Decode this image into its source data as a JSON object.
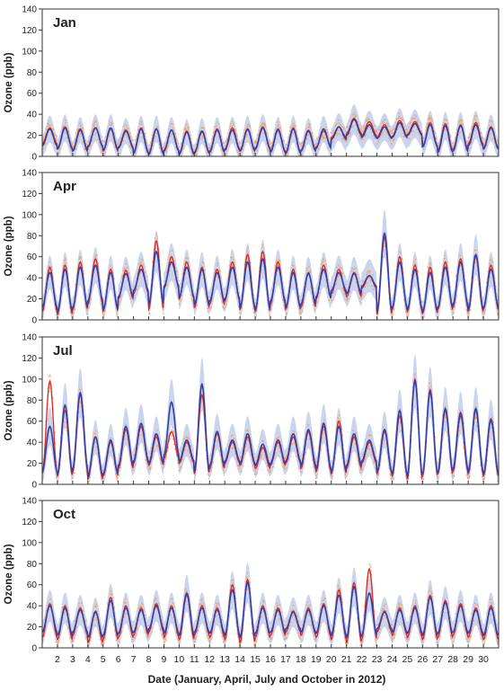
{
  "chart_data": {
    "type": "line",
    "xlabel": "Date (January, April, July and October in 2012)",
    "x_ticks": [
      "2",
      "3",
      "4",
      "5",
      "6",
      "7",
      "8",
      "9",
      "10",
      "11",
      "12",
      "13",
      "14",
      "15",
      "16",
      "17",
      "18",
      "19",
      "20",
      "21",
      "22",
      "23",
      "24",
      "25",
      "26",
      "27",
      "28",
      "29",
      "30"
    ],
    "xlim": [
      1,
      31
    ],
    "ylim": [
      0,
      140
    ],
    "y_ticks": [
      0,
      20,
      40,
      60,
      80,
      100,
      120,
      140
    ],
    "colors": {
      "observed_points": "#f0a45a",
      "red_series": "#e2231a",
      "blue_series": "#3240a8",
      "band": "#b8c6e8"
    },
    "panels": [
      {
        "title": "Jan",
        "ylabel": "Ozone (ppb)",
        "red_daily_peak": [
          27,
          28,
          26,
          27,
          26,
          25,
          27,
          26,
          25,
          24,
          23,
          26,
          27,
          25,
          28,
          26,
          27,
          25,
          24,
          28,
          36,
          33,
          30,
          34,
          33,
          32,
          31,
          30,
          32,
          28
        ],
        "red_daily_low": [
          12,
          8,
          6,
          10,
          5,
          9,
          4,
          3,
          6,
          3,
          4,
          5,
          7,
          6,
          8,
          5,
          4,
          6,
          9,
          18,
          22,
          20,
          18,
          19,
          21,
          10,
          6,
          7,
          12,
          8
        ],
        "blue_daily_peak": [
          26,
          27,
          25,
          27,
          27,
          24,
          26,
          26,
          25,
          23,
          24,
          25,
          25,
          26,
          27,
          25,
          26,
          24,
          26,
          28,
          35,
          30,
          28,
          32,
          31,
          30,
          29,
          29,
          30,
          27
        ],
        "blue_daily_low": [
          10,
          7,
          5,
          9,
          6,
          8,
          3,
          2,
          5,
          2,
          3,
          4,
          6,
          5,
          7,
          4,
          3,
          5,
          8,
          16,
          20,
          18,
          17,
          18,
          20,
          9,
          4,
          5,
          10,
          7
        ]
      },
      {
        "title": "Apr",
        "ylabel": "Ozone (ppb)",
        "red_daily_peak": [
          50,
          52,
          55,
          58,
          48,
          47,
          52,
          75,
          60,
          55,
          50,
          48,
          55,
          62,
          65,
          55,
          48,
          45,
          52,
          48,
          45,
          42,
          78,
          60,
          52,
          50,
          55,
          58,
          60,
          52
        ],
        "red_daily_low": [
          8,
          5,
          10,
          15,
          8,
          20,
          25,
          10,
          30,
          20,
          12,
          15,
          18,
          10,
          8,
          15,
          10,
          12,
          20,
          25,
          22,
          30,
          5,
          10,
          8,
          6,
          10,
          12,
          8,
          10
        ],
        "blue_daily_peak": [
          45,
          48,
          50,
          52,
          45,
          44,
          48,
          65,
          55,
          50,
          48,
          45,
          50,
          55,
          58,
          50,
          45,
          44,
          48,
          45,
          44,
          42,
          82,
          55,
          48,
          45,
          50,
          55,
          62,
          48
        ],
        "blue_daily_low": [
          12,
          8,
          12,
          18,
          10,
          22,
          28,
          15,
          32,
          22,
          15,
          18,
          20,
          12,
          10,
          18,
          12,
          15,
          22,
          28,
          25,
          32,
          8,
          12,
          10,
          8,
          12,
          15,
          10,
          12
        ]
      },
      {
        "title": "Jul",
        "ylabel": "Ozone (ppb)",
        "red_daily_peak": [
          98,
          70,
          85,
          45,
          40,
          52,
          55,
          45,
          50,
          40,
          85,
          48,
          40,
          45,
          35,
          40,
          45,
          50,
          55,
          60,
          45,
          40,
          50,
          65,
          100,
          90,
          70,
          65,
          70,
          60
        ],
        "red_daily_low": [
          10,
          8,
          12,
          5,
          8,
          15,
          20,
          18,
          25,
          20,
          10,
          15,
          20,
          18,
          15,
          18,
          20,
          15,
          12,
          10,
          15,
          20,
          10,
          8,
          5,
          8,
          10,
          12,
          10,
          8
        ],
        "blue_daily_peak": [
          55,
          75,
          87,
          45,
          42,
          55,
          58,
          48,
          78,
          42,
          95,
          50,
          42,
          48,
          38,
          42,
          48,
          52,
          58,
          55,
          48,
          42,
          52,
          70,
          98,
          88,
          72,
          68,
          72,
          62
        ],
        "blue_daily_low": [
          12,
          10,
          15,
          8,
          10,
          18,
          22,
          20,
          28,
          22,
          12,
          18,
          22,
          20,
          18,
          20,
          22,
          18,
          15,
          12,
          18,
          22,
          12,
          10,
          8,
          10,
          12,
          15,
          12,
          10
        ]
      },
      {
        "title": "Oct",
        "ylabel": "Ozone (ppb)",
        "red_daily_peak": [
          42,
          40,
          38,
          35,
          48,
          40,
          38,
          42,
          40,
          50,
          40,
          38,
          60,
          65,
          40,
          38,
          35,
          38,
          42,
          55,
          62,
          75,
          35,
          38,
          40,
          50,
          45,
          42,
          38,
          40
        ],
        "red_daily_low": [
          10,
          8,
          12,
          5,
          8,
          10,
          12,
          15,
          10,
          8,
          12,
          10,
          8,
          5,
          10,
          12,
          15,
          12,
          10,
          8,
          5,
          8,
          15,
          12,
          10,
          8,
          10,
          12,
          10,
          8
        ],
        "blue_daily_peak": [
          40,
          38,
          36,
          34,
          45,
          38,
          36,
          40,
          38,
          52,
          38,
          36,
          55,
          62,
          38,
          36,
          34,
          36,
          40,
          50,
          58,
          52,
          34,
          36,
          38,
          48,
          43,
          40,
          36,
          38
        ],
        "blue_daily_low": [
          15,
          12,
          15,
          10,
          12,
          14,
          15,
          18,
          14,
          12,
          15,
          14,
          12,
          10,
          14,
          15,
          18,
          15,
          14,
          12,
          10,
          12,
          18,
          15,
          14,
          12,
          14,
          15,
          14,
          12
        ]
      }
    ]
  }
}
